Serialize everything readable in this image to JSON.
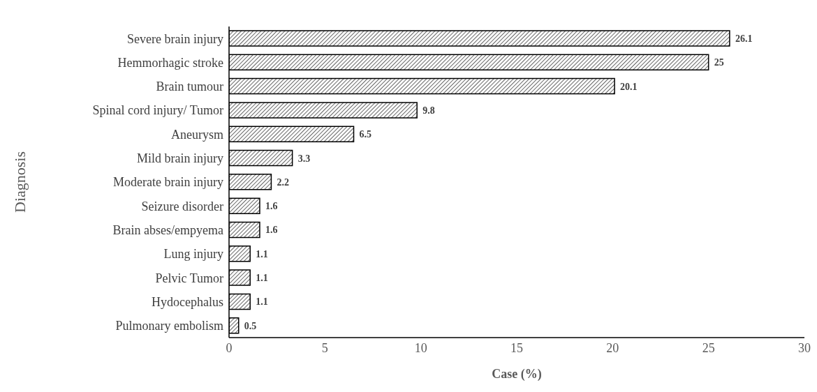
{
  "chart_data": {
    "type": "bar",
    "orientation": "horizontal",
    "xlabel": "Case (%)",
    "ylabel": "Diagnosis",
    "categories": [
      "Severe brain injury",
      "Hemmorhagic stroke",
      "Brain tumour",
      "Spinal cord injury/ Tumor",
      "Aneurysm",
      "Mild brain injury",
      "Moderate brain injury",
      "Seizure disorder",
      "Brain abses/empyema",
      "Lung injury",
      "Pelvic Tumor",
      "Hydocephalus",
      "Pulmonary embolism"
    ],
    "values": [
      26.1,
      25,
      20.1,
      9.8,
      6.5,
      3.3,
      2.2,
      1.6,
      1.6,
      1.1,
      1.1,
      1.1,
      0.5
    ],
    "color": "#000000",
    "xlim": [
      0,
      30
    ],
    "xticks": [
      0,
      5,
      10,
      15,
      20,
      25,
      30
    ],
    "grid": false,
    "legend": false,
    "data_labels": true
  }
}
